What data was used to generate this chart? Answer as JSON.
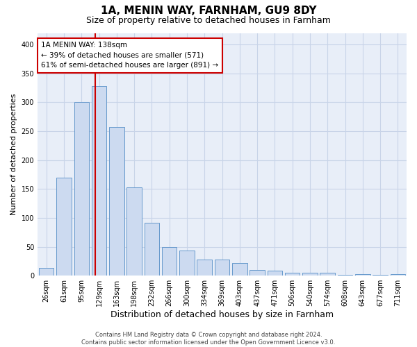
{
  "title": "1A, MENIN WAY, FARNHAM, GU9 8DY",
  "subtitle": "Size of property relative to detached houses in Farnham",
  "xlabel": "Distribution of detached houses by size in Farnham",
  "ylabel": "Number of detached properties",
  "categories": [
    "26sqm",
    "61sqm",
    "95sqm",
    "129sqm",
    "163sqm",
    "198sqm",
    "232sqm",
    "266sqm",
    "300sqm",
    "334sqm",
    "369sqm",
    "403sqm",
    "437sqm",
    "471sqm",
    "506sqm",
    "540sqm",
    "574sqm",
    "608sqm",
    "643sqm",
    "677sqm",
    "711sqm"
  ],
  "values": [
    13,
    170,
    300,
    328,
    257,
    153,
    92,
    50,
    44,
    28,
    28,
    22,
    10,
    9,
    5,
    5,
    5,
    1,
    3,
    1,
    3
  ],
  "bar_color": "#ccdaf0",
  "bar_edge_color": "#6699cc",
  "grid_color": "#c8d4e8",
  "background_color": "#e8eef8",
  "annotation_text": "1A MENIN WAY: 138sqm\n← 39% of detached houses are smaller (571)\n61% of semi-detached houses are larger (891) →",
  "vline_color": "#cc0000",
  "annotation_box_facecolor": "white",
  "annotation_box_edgecolor": "#cc0000",
  "footer": "Contains HM Land Registry data © Crown copyright and database right 2024.\nContains public sector information licensed under the Open Government Licence v3.0.",
  "ylim": [
    0,
    420
  ],
  "yticks": [
    0,
    50,
    100,
    150,
    200,
    250,
    300,
    350,
    400
  ],
  "title_fontsize": 11,
  "subtitle_fontsize": 9,
  "xlabel_fontsize": 9,
  "ylabel_fontsize": 8,
  "tick_fontsize": 7,
  "annot_fontsize": 7.5,
  "footer_fontsize": 6
}
